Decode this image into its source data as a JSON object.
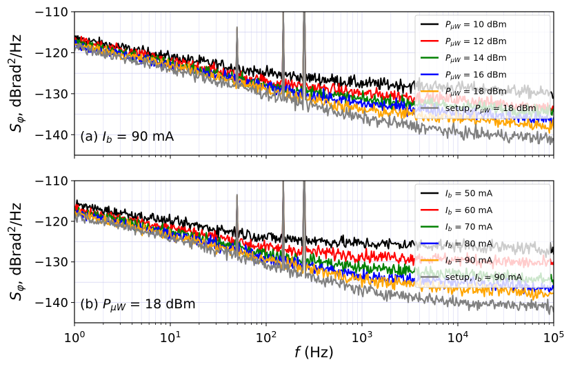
{
  "figure": {
    "xlabel": "f (Hz)",
    "xlabel_italic": "f",
    "xlabel_rest": " (Hz)"
  },
  "chart_data": [
    {
      "type": "line",
      "panel_label": "(a) I_b = 90 mA",
      "panel_label_prefix": "(a) ",
      "panel_label_var": "I",
      "panel_label_sub": "b",
      "panel_label_suffix": " = 90 mA",
      "ylabel": "S_φ, dBrad²/Hz",
      "x_scale": "log",
      "xlim": [
        1,
        100000
      ],
      "ylim": [
        -145,
        -110
      ],
      "yticks": [
        -140,
        -130,
        -120,
        -110
      ],
      "ytick_labels": [
        "−140",
        "−130",
        "−120",
        "−110"
      ],
      "grid": true,
      "legend_position": "top-right",
      "spur_frequencies_hz": [
        50,
        150,
        250
      ],
      "series": [
        {
          "name": "P_μW = 10 dBm",
          "label_var": "P",
          "label_sub": "μW",
          "label_suffix": " = 10 dBm",
          "color": "#000000",
          "x": [
            1,
            10,
            100,
            1000,
            10000,
            100000
          ],
          "y": [
            -116.5,
            -121,
            -125,
            -127.5,
            -128.5,
            -130
          ]
        },
        {
          "name": "P_μW = 12 dBm",
          "label_var": "P",
          "label_sub": "μW",
          "label_suffix": " = 12 dBm",
          "color": "#ff0000",
          "x": [
            1,
            10,
            100,
            1000,
            10000,
            100000
          ],
          "y": [
            -117,
            -122,
            -127,
            -130,
            -131.5,
            -133.5
          ]
        },
        {
          "name": "P_μW = 14 dBm",
          "label_var": "P",
          "label_sub": "μW",
          "label_suffix": " = 14 dBm",
          "color": "#008000",
          "x": [
            1,
            10,
            100,
            1000,
            10000,
            100000
          ],
          "y": [
            -117.5,
            -122.5,
            -128,
            -131.5,
            -133,
            -134.5
          ]
        },
        {
          "name": "P_μW = 16 dBm",
          "label_var": "P",
          "label_sub": "μW",
          "label_suffix": " = 16 dBm",
          "color": "#0000ff",
          "x": [
            1,
            10,
            100,
            1000,
            10000,
            100000
          ],
          "y": [
            -118,
            -123,
            -128.5,
            -132.5,
            -134.5,
            -136.5
          ]
        },
        {
          "name": "P_μW = 18 dBm",
          "label_var": "P",
          "label_sub": "μW",
          "label_suffix": " = 18 dBm",
          "color": "#ffa500",
          "x": [
            1,
            10,
            100,
            1000,
            10000,
            100000
          ],
          "y": [
            -118,
            -123,
            -129,
            -134,
            -136,
            -138
          ]
        },
        {
          "name": "setup, P_μW = 18 dBm",
          "label_prefix": "setup, ",
          "label_var": "P",
          "label_sub": "μW",
          "label_suffix": " = 18 dBm",
          "color": "#808080",
          "x": [
            1,
            10,
            100,
            1000,
            10000,
            100000
          ],
          "y": [
            -118.5,
            -124,
            -130,
            -136,
            -139.5,
            -141
          ]
        }
      ]
    },
    {
      "type": "line",
      "panel_label": "(b) P_μW = 18 dBm",
      "panel_label_prefix": "(b) ",
      "panel_label_var": "P",
      "panel_label_sub": "μW",
      "panel_label_suffix": " = 18 dBm",
      "ylabel": "S_φ, dBrad²/Hz",
      "x_scale": "log",
      "xlim": [
        1,
        100000
      ],
      "ylim": [
        -145,
        -110
      ],
      "yticks": [
        -140,
        -130,
        -120,
        -110
      ],
      "ytick_labels": [
        "−140",
        "−130",
        "−120",
        "−110"
      ],
      "xticks": [
        1,
        10,
        100,
        1000,
        10000,
        100000
      ],
      "grid": true,
      "legend_position": "top-right",
      "spur_frequencies_hz": [
        50,
        150,
        250
      ],
      "series": [
        {
          "name": "I_b = 50 mA",
          "label_var": "I",
          "label_sub": "b",
          "label_suffix": " = 50 mA",
          "color": "#000000",
          "x": [
            1,
            10,
            100,
            1000,
            10000,
            100000
          ],
          "y": [
            -116,
            -120,
            -124,
            -125.5,
            -126,
            -127
          ]
        },
        {
          "name": "I_b = 60 mA",
          "label_var": "I",
          "label_sub": "b",
          "label_suffix": " = 60 mA",
          "color": "#ff0000",
          "x": [
            1,
            10,
            100,
            1000,
            10000,
            100000
          ],
          "y": [
            -117,
            -121.5,
            -126.5,
            -128.5,
            -129.5,
            -130.5
          ]
        },
        {
          "name": "I_b = 70 mA",
          "label_var": "I",
          "label_sub": "b",
          "label_suffix": " = 70 mA",
          "color": "#008000",
          "x": [
            1,
            10,
            100,
            1000,
            10000,
            100000
          ],
          "y": [
            -117.5,
            -122.5,
            -128,
            -131.5,
            -133,
            -134.5
          ]
        },
        {
          "name": "I_b = 80 mA",
          "label_var": "I",
          "label_sub": "b",
          "label_suffix": " = 80 mA",
          "color": "#0000ff",
          "x": [
            1,
            10,
            100,
            1000,
            10000,
            100000
          ],
          "y": [
            -118,
            -123,
            -129,
            -133.5,
            -135,
            -136.5
          ]
        },
        {
          "name": "I_b = 90 mA",
          "label_var": "I",
          "label_sub": "b",
          "label_suffix": " = 90 mA",
          "color": "#ffa500",
          "x": [
            1,
            10,
            100,
            1000,
            10000,
            100000
          ],
          "y": [
            -118,
            -123.5,
            -129.5,
            -134.5,
            -136.5,
            -138
          ]
        },
        {
          "name": "setup, I_b = 90 mA",
          "label_prefix": "setup, ",
          "label_var": "I",
          "label_sub": "b",
          "label_suffix": " = 90 mA",
          "color": "#808080",
          "x": [
            1,
            10,
            100,
            1000,
            10000,
            100000
          ],
          "y": [
            -118.5,
            -124,
            -130.5,
            -137,
            -140,
            -141
          ]
        }
      ]
    }
  ]
}
